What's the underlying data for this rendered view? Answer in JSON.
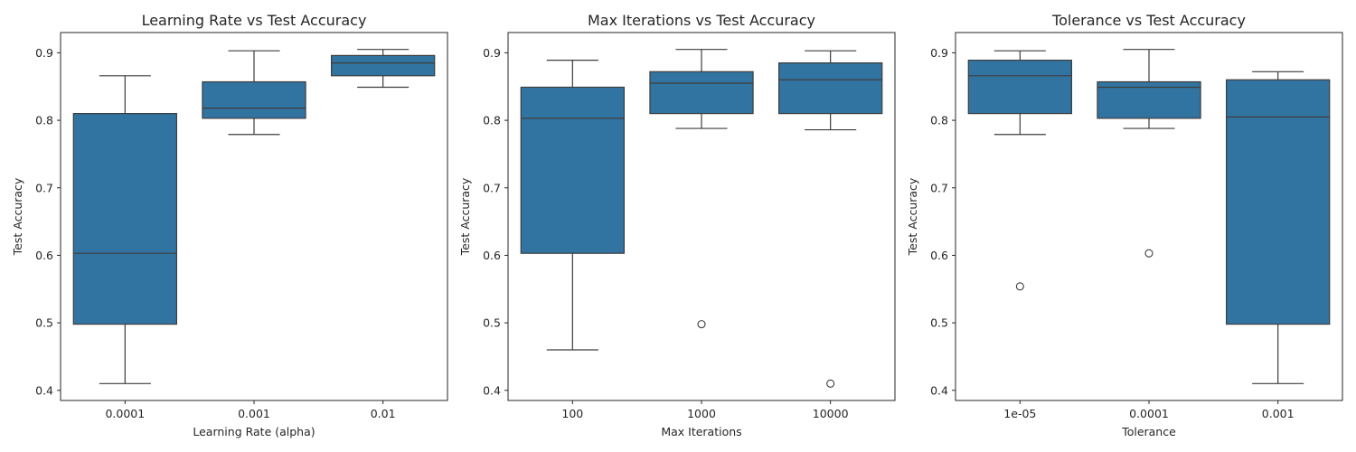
{
  "chart_data": [
    {
      "type": "box",
      "title": "Learning Rate vs Test Accuracy",
      "xlabel": "Learning Rate (alpha)",
      "ylabel": "Test Accuracy",
      "ylim": [
        0.385,
        0.93
      ],
      "yticks": [
        "0.4",
        "0.5",
        "0.6",
        "0.7",
        "0.8",
        "0.9"
      ],
      "color": "#3274a1",
      "categories": [
        "0.0001",
        "0.001",
        "0.01"
      ],
      "boxes": [
        {
          "whisker_low": 0.41,
          "q1": 0.498,
          "median": 0.603,
          "q3": 0.81,
          "whisker_high": 0.866,
          "outliers": []
        },
        {
          "whisker_low": 0.779,
          "q1": 0.803,
          "median": 0.818,
          "q3": 0.857,
          "whisker_high": 0.903,
          "outliers": []
        },
        {
          "whisker_low": 0.849,
          "q1": 0.866,
          "median": 0.885,
          "q3": 0.896,
          "whisker_high": 0.905,
          "outliers": []
        }
      ]
    },
    {
      "type": "box",
      "title": "Max Iterations vs Test Accuracy",
      "xlabel": "Max Iterations",
      "ylabel": "Test Accuracy",
      "ylim": [
        0.385,
        0.93
      ],
      "yticks": [
        "0.4",
        "0.5",
        "0.6",
        "0.7",
        "0.8",
        "0.9"
      ],
      "color": "#3274a1",
      "categories": [
        "100",
        "1000",
        "10000"
      ],
      "boxes": [
        {
          "whisker_low": 0.46,
          "q1": 0.603,
          "median": 0.803,
          "q3": 0.849,
          "whisker_high": 0.889,
          "outliers": []
        },
        {
          "whisker_low": 0.788,
          "q1": 0.81,
          "median": 0.855,
          "q3": 0.872,
          "whisker_high": 0.905,
          "outliers": [
            0.498
          ]
        },
        {
          "whisker_low": 0.786,
          "q1": 0.81,
          "median": 0.86,
          "q3": 0.885,
          "whisker_high": 0.903,
          "outliers": [
            0.41
          ]
        }
      ]
    },
    {
      "type": "box",
      "title": "Tolerance vs Test Accuracy",
      "xlabel": "Tolerance",
      "ylabel": "Test Accuracy",
      "ylim": [
        0.385,
        0.93
      ],
      "yticks": [
        "0.4",
        "0.5",
        "0.6",
        "0.7",
        "0.8",
        "0.9"
      ],
      "color": "#3274a1",
      "categories": [
        "1e-05",
        "0.0001",
        "0.001"
      ],
      "boxes": [
        {
          "whisker_low": 0.779,
          "q1": 0.81,
          "median": 0.866,
          "q3": 0.889,
          "whisker_high": 0.903,
          "outliers": [
            0.554
          ]
        },
        {
          "whisker_low": 0.788,
          "q1": 0.803,
          "median": 0.849,
          "q3": 0.857,
          "whisker_high": 0.905,
          "outliers": [
            0.603
          ]
        },
        {
          "whisker_low": 0.41,
          "q1": 0.498,
          "median": 0.805,
          "q3": 0.86,
          "whisker_high": 0.872,
          "outliers": []
        }
      ]
    }
  ]
}
